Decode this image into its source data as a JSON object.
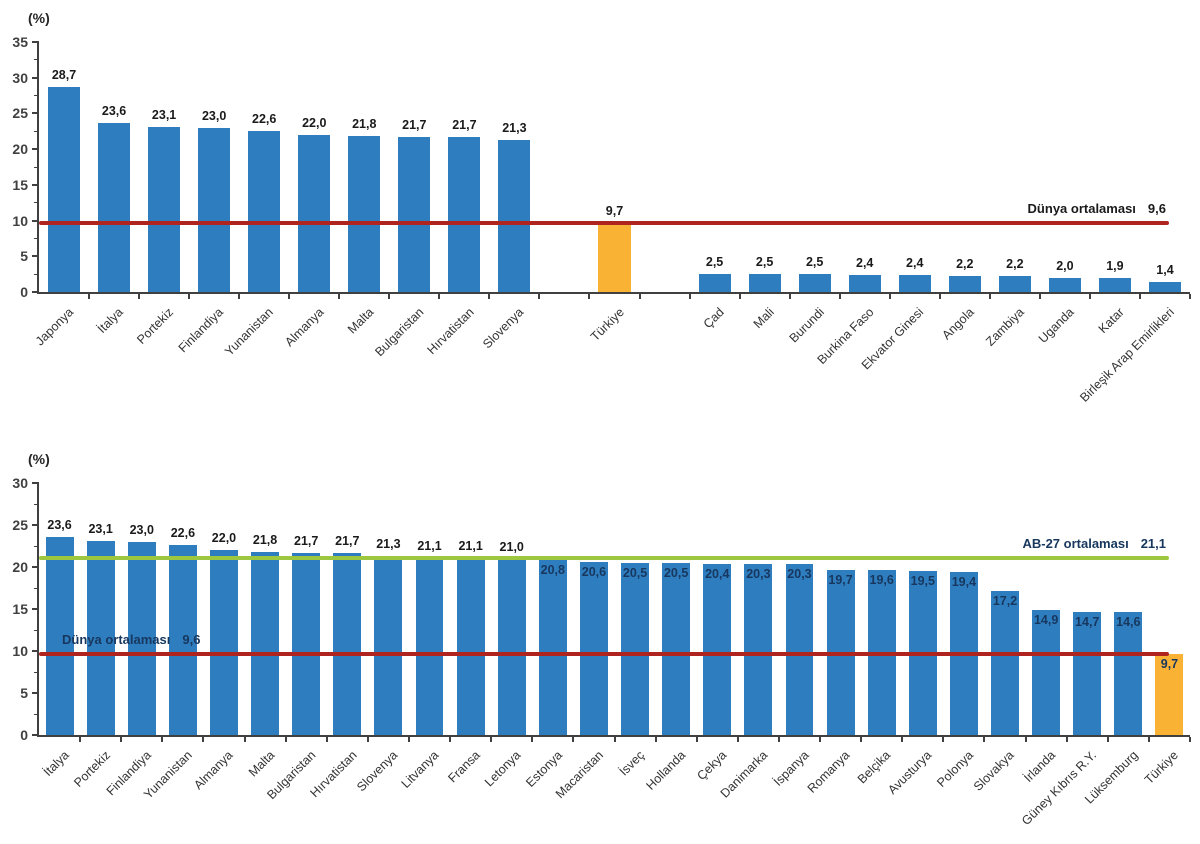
{
  "page": {
    "background": "#ffffff",
    "unit_label": "(%)"
  },
  "chart_data": [
    {
      "type": "bar",
      "title": "",
      "ylabel": "(%)",
      "xlabel": "",
      "ylim": [
        0,
        35
      ],
      "ytick_step": 5,
      "ytick_labels": [
        "0",
        "5",
        "10",
        "15",
        "20",
        "25",
        "30",
        "35"
      ],
      "grid": false,
      "legend_position": "none",
      "categories": [
        "Japonya",
        "İtalya",
        "Portekiz",
        "Finlandiya",
        "Yunanistan",
        "Almanya",
        "Malta",
        "Bulgaristan",
        "Hırvatistan",
        "Slovenya",
        "Türkiye",
        "Çad",
        "Mali",
        "Burundi",
        "Burkina Faso",
        "Ekvator Ginesi",
        "Angola",
        "Zambiya",
        "Uganda",
        "Katar",
        "Birleşik Arap Emirlikleri"
      ],
      "values": [
        28.7,
        23.6,
        23.1,
        23.0,
        22.6,
        22.0,
        21.8,
        21.7,
        21.7,
        21.3,
        9.7,
        2.5,
        2.5,
        2.5,
        2.4,
        2.4,
        2.2,
        2.2,
        2.0,
        1.9,
        1.4
      ],
      "value_labels": [
        "28,7",
        "23,6",
        "23,1",
        "23,0",
        "22,6",
        "22,0",
        "21,8",
        "21,7",
        "21,7",
        "21,3",
        "9,7",
        "2,5",
        "2,5",
        "2,5",
        "2,4",
        "2,4",
        "2,2",
        "2,2",
        "2,0",
        "1,9",
        "1,4"
      ],
      "highlight_category": "Türkiye",
      "highlight_index": 10,
      "colors": {
        "bar": "#2E7DBF",
        "highlight_bar": "#F9B233",
        "value_label": "#1A1A1A",
        "value_label_inside": "#17375E",
        "axis": "#404040",
        "tick_label": "#404040",
        "category_label": "#333333"
      },
      "reference_lines": [
        {
          "id": "world-average",
          "label": "Dünya ortalaması",
          "value": 9.6,
          "value_label": "9,6",
          "color": "#B02420",
          "label_color": "#1A1A1A",
          "label_align": "right"
        }
      ],
      "layout": {
        "total_slots": 23,
        "gap_slots": [
          10,
          12
        ],
        "bar_width_ratio": 0.64,
        "ytick_minor_step": 2.5,
        "inside_label_below": null
      }
    },
    {
      "type": "bar",
      "title": "",
      "ylabel": "(%)",
      "xlabel": "",
      "ylim": [
        0,
        30
      ],
      "ytick_step": 5,
      "ytick_labels": [
        "0",
        "5",
        "10",
        "15",
        "20",
        "25",
        "30"
      ],
      "grid": false,
      "legend_position": "none",
      "categories": [
        "İtalya",
        "Portekiz",
        "Finlandiya",
        "Yunanistan",
        "Almanya",
        "Malta",
        "Bulgaristan",
        "Hırvatistan",
        "Slovenya",
        "Litvanya",
        "Fransa",
        "Letonya",
        "Estonya",
        "Macaristan",
        "İsveç",
        "Hollanda",
        "Çekya",
        "Danimarka",
        "İspanya",
        "Romanya",
        "Belçika",
        "Avusturya",
        "Polonya",
        "Slovakya",
        "İrlanda",
        "Güney Kıbrıs R.Y.",
        "Lüksemburg",
        "Türkiye"
      ],
      "values": [
        23.6,
        23.1,
        23.0,
        22.6,
        22.0,
        21.8,
        21.7,
        21.7,
        21.3,
        21.1,
        21.1,
        21.0,
        20.8,
        20.6,
        20.5,
        20.5,
        20.4,
        20.3,
        20.3,
        19.7,
        19.6,
        19.5,
        19.4,
        17.2,
        14.9,
        14.7,
        14.6,
        9.7
      ],
      "value_labels": [
        "23,6",
        "23,1",
        "23,0",
        "22,6",
        "22,0",
        "21,8",
        "21,7",
        "21,7",
        "21,3",
        "21,1",
        "21,1",
        "21,0",
        "20,8",
        "20,6",
        "20,5",
        "20,5",
        "20,4",
        "20,3",
        "20,3",
        "19,7",
        "19,6",
        "19,5",
        "19,4",
        "17,2",
        "14,9",
        "14,7",
        "14,6",
        "9,7"
      ],
      "highlight_category": "Türkiye",
      "highlight_index": 27,
      "colors": {
        "bar": "#2E7DBF",
        "highlight_bar": "#F9B233",
        "value_label": "#1A1A1A",
        "value_label_inside": "#17375E",
        "axis": "#404040",
        "tick_label": "#404040",
        "category_label": "#333333"
      },
      "reference_lines": [
        {
          "id": "eu27-average",
          "label": "AB-27 ortalaması",
          "value": 21.1,
          "value_label": "21,1",
          "color": "#9DC73E",
          "label_color": "#17375E",
          "label_align": "right"
        },
        {
          "id": "world-average",
          "label": "Dünya ortalaması",
          "value": 9.6,
          "value_label": "9,6",
          "color": "#B02420",
          "label_color": "#17375E",
          "label_align": "left"
        }
      ],
      "layout": {
        "total_slots": 28,
        "gap_slots": [],
        "bar_width_ratio": 0.68,
        "ytick_minor_step": 2.5,
        "inside_label_below": 21.0
      }
    }
  ]
}
